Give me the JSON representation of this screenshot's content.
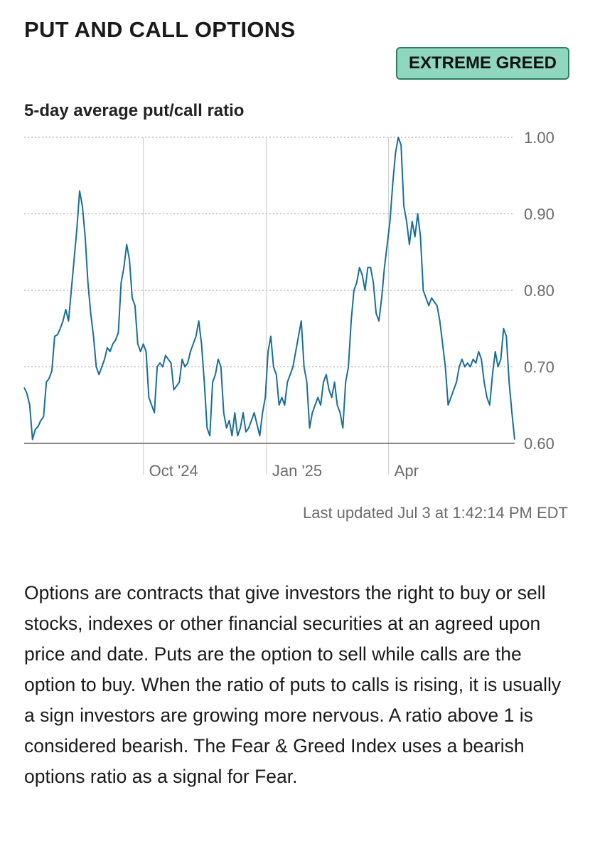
{
  "header": {
    "title": "PUT AND CALL OPTIONS",
    "badge": "EXTREME GREED",
    "badge_color": "#8fd7bf"
  },
  "chart_data": {
    "type": "line",
    "title": "5-day average put/call ratio",
    "xlabel": "",
    "ylabel": "",
    "ylim": [
      0.6,
      1.0
    ],
    "y_ticks": [
      {
        "value": 1.0,
        "label": "1.00"
      },
      {
        "value": 0.9,
        "label": "0.90"
      },
      {
        "value": 0.8,
        "label": "0.80"
      },
      {
        "value": 0.7,
        "label": "0.70"
      },
      {
        "value": 0.6,
        "label": "0.60"
      }
    ],
    "x_ticks": [
      "Oct '24",
      "Jan '25",
      "Apr"
    ],
    "line_color": "#1a6e96",
    "grid": true,
    "values": [
      0.673,
      0.665,
      0.65,
      0.605,
      0.618,
      0.622,
      0.63,
      0.635,
      0.68,
      0.685,
      0.695,
      0.74,
      0.742,
      0.75,
      0.76,
      0.775,
      0.76,
      0.8,
      0.84,
      0.88,
      0.93,
      0.91,
      0.87,
      0.81,
      0.77,
      0.74,
      0.7,
      0.69,
      0.7,
      0.71,
      0.725,
      0.72,
      0.73,
      0.735,
      0.745,
      0.81,
      0.83,
      0.86,
      0.84,
      0.79,
      0.78,
      0.73,
      0.72,
      0.73,
      0.72,
      0.66,
      0.65,
      0.64,
      0.7,
      0.705,
      0.7,
      0.715,
      0.71,
      0.705,
      0.67,
      0.675,
      0.68,
      0.71,
      0.7,
      0.705,
      0.72,
      0.73,
      0.74,
      0.76,
      0.73,
      0.68,
      0.62,
      0.61,
      0.68,
      0.69,
      0.71,
      0.7,
      0.64,
      0.62,
      0.63,
      0.61,
      0.64,
      0.61,
      0.62,
      0.64,
      0.615,
      0.62,
      0.63,
      0.64,
      0.625,
      0.61,
      0.64,
      0.66,
      0.72,
      0.74,
      0.7,
      0.69,
      0.65,
      0.66,
      0.65,
      0.68,
      0.69,
      0.7,
      0.72,
      0.74,
      0.76,
      0.7,
      0.68,
      0.62,
      0.64,
      0.65,
      0.66,
      0.65,
      0.68,
      0.69,
      0.67,
      0.66,
      0.68,
      0.65,
      0.64,
      0.62,
      0.68,
      0.7,
      0.76,
      0.8,
      0.81,
      0.83,
      0.82,
      0.8,
      0.83,
      0.83,
      0.81,
      0.77,
      0.76,
      0.79,
      0.83,
      0.86,
      0.89,
      0.94,
      0.98,
      1.0,
      0.99,
      0.91,
      0.89,
      0.86,
      0.89,
      0.87,
      0.9,
      0.87,
      0.8,
      0.79,
      0.78,
      0.79,
      0.785,
      0.78,
      0.76,
      0.73,
      0.7,
      0.65,
      0.66,
      0.67,
      0.68,
      0.7,
      0.71,
      0.7,
      0.705,
      0.7,
      0.71,
      0.705,
      0.72,
      0.71,
      0.68,
      0.66,
      0.65,
      0.69,
      0.72,
      0.7,
      0.71,
      0.75,
      0.74,
      0.68,
      0.64,
      0.605
    ]
  },
  "chart_axis_x_positions": {},
  "footer": {
    "updated": "Last updated Jul 3 at 1:42:14 PM EDT",
    "description": "Options are contracts that give investors the right to buy or sell stocks, indexes or other financial securities at an agreed upon price and date. Puts are the option to sell while calls are the option to buy. When the ratio of puts to calls is rising, it is usually a sign investors are growing more nervous. A ratio above 1 is considered bearish. The Fear & Greed Index uses a bearish options ratio as a signal for Fear."
  }
}
